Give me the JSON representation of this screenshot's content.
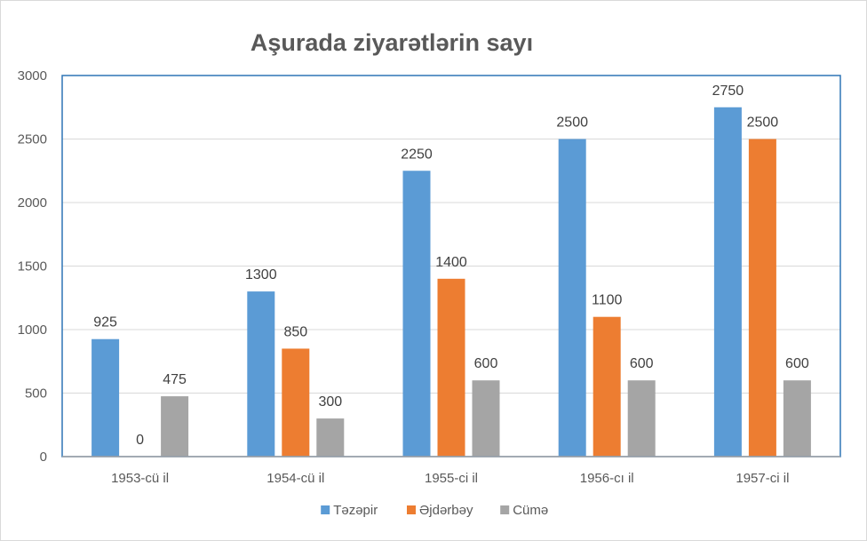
{
  "chart_data": {
    "type": "bar",
    "title": "Aşurada ziyarətlərin sayı",
    "categories": [
      "1953-cü il",
      "1954-cü il",
      "1955-ci il",
      "1956-cı il",
      "1957-ci il"
    ],
    "series": [
      {
        "name": "Təzəpir",
        "color": "#5b9bd5",
        "values": [
          925,
          1300,
          2250,
          2500,
          2750
        ]
      },
      {
        "name": "Əjdərbəy",
        "color": "#ed7d31",
        "values": [
          0,
          850,
          1400,
          1100,
          2500
        ]
      },
      {
        "name": "Cümə",
        "color": "#a5a5a5",
        "values": [
          475,
          300,
          600,
          600,
          600
        ]
      }
    ],
    "y_ticks": [
      "0",
      "500",
      "1000",
      "1500",
      "2000",
      "2500",
      "3000"
    ],
    "ylim": [
      0,
      3000
    ],
    "data_labels": true,
    "grid": true,
    "legend_position": "bottom",
    "plot_area_border_color": "#2e75b6"
  }
}
